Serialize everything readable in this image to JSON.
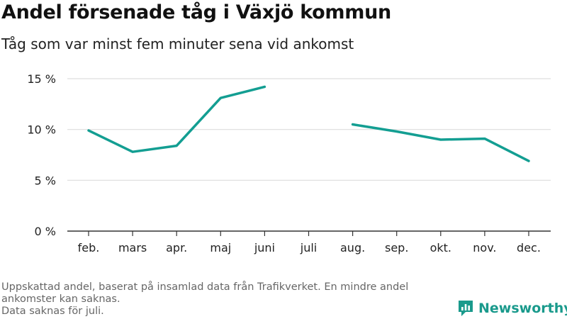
{
  "header": {
    "title": "Andel försenade tåg i Växjö kommun",
    "subtitle": "Tåg som var minst fem minuter sena vid ankomst"
  },
  "footer": {
    "note_line1": "Uppskattad andel, baserat på insamlad data från Trafikverket. En mindre andel ankomster kan saknas.",
    "note_line2": "Data saknas för juli.",
    "brand_name": "Newsworthy",
    "brand_icon": "newsworthy-logo-icon"
  },
  "colors": {
    "line": "#139e92",
    "grid": "#dddddd",
    "axis": "#333333",
    "brand": "#1a9a8c"
  },
  "chart_data": {
    "type": "line",
    "title": "Andel försenade tåg i Växjö kommun",
    "subtitle": "Tåg som var minst fem minuter sena vid ankomst",
    "categories": [
      "feb.",
      "mars",
      "apr.",
      "maj",
      "juni",
      "juli",
      "aug.",
      "sep.",
      "okt.",
      "nov.",
      "dec."
    ],
    "series": [
      {
        "values": [
          9.9,
          7.8,
          8.4,
          13.1,
          14.2,
          null,
          10.5,
          9.8,
          9.0,
          9.1,
          6.9
        ]
      }
    ],
    "ylim": [
      0,
      15
    ],
    "yticks": [
      0,
      5,
      10,
      15
    ],
    "ytick_labels": [
      "0 %",
      "5 %",
      "10 %",
      "15 %"
    ],
    "xlabel": "",
    "ylabel": "",
    "grid": true,
    "legend": false
  }
}
